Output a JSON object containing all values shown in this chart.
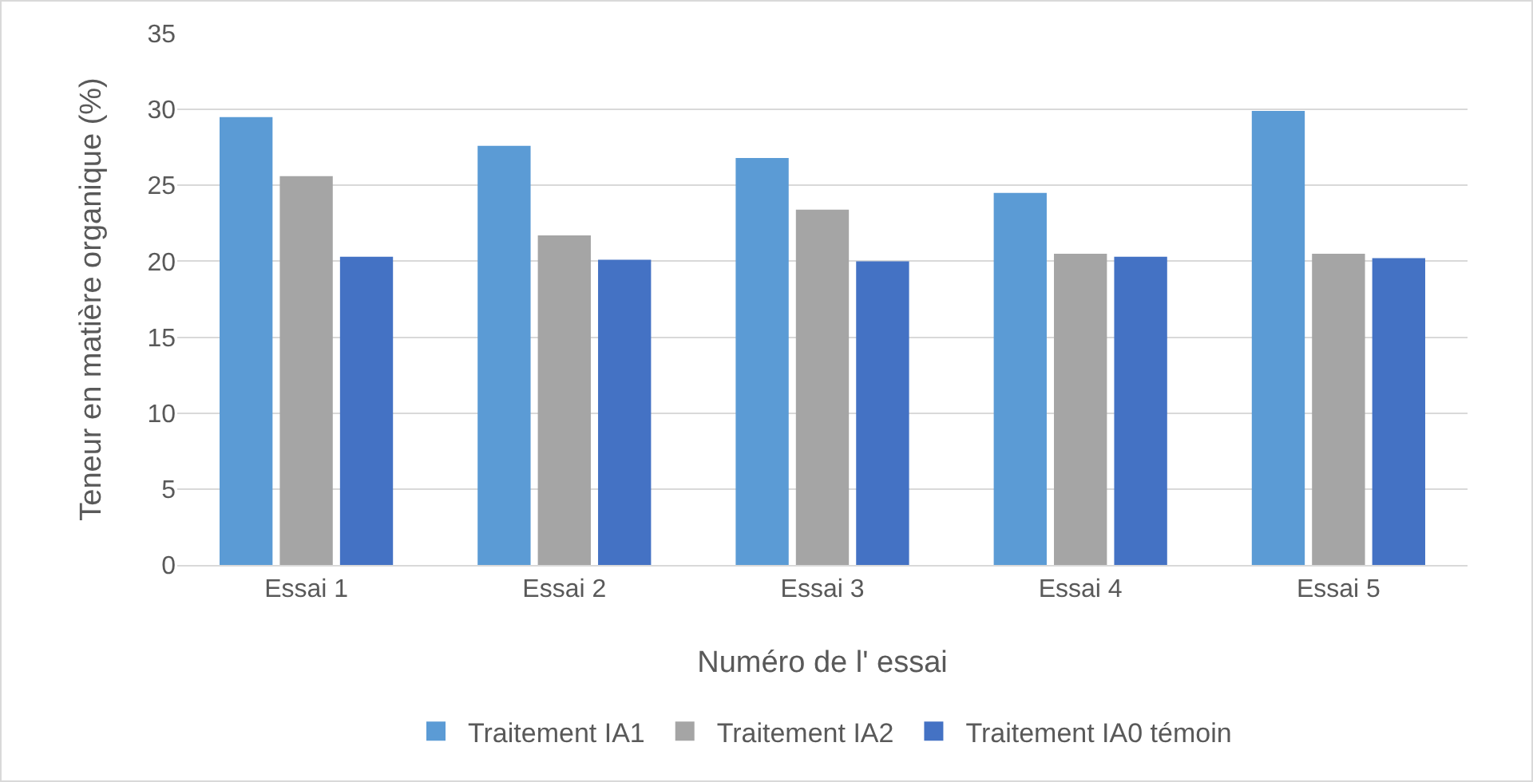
{
  "chart_data": {
    "type": "bar",
    "xlabel": "Numéro de l' essai",
    "ylabel": "Teneur en matière organique (%)",
    "categories": [
      "Essai 1",
      "Essai 2",
      "Essai 3",
      "Essai 4",
      "Essai 5"
    ],
    "series": [
      {
        "name": "Traitement IA1",
        "color": "#5b9bd5",
        "values": [
          29.5,
          27.6,
          26.8,
          24.5,
          29.9
        ]
      },
      {
        "name": "Traitement IA2",
        "color": "#a5a5a5",
        "values": [
          25.6,
          21.7,
          23.4,
          20.5,
          20.5
        ]
      },
      {
        "name": "Traitement IA0 témoin",
        "color": "#4472c4",
        "values": [
          20.3,
          20.1,
          20.0,
          20.3,
          20.2
        ]
      }
    ],
    "ylim": [
      0,
      35
    ],
    "yticks": [
      0,
      5,
      10,
      15,
      20,
      25,
      30,
      35
    ],
    "grid": "y",
    "legend": "bottom"
  }
}
